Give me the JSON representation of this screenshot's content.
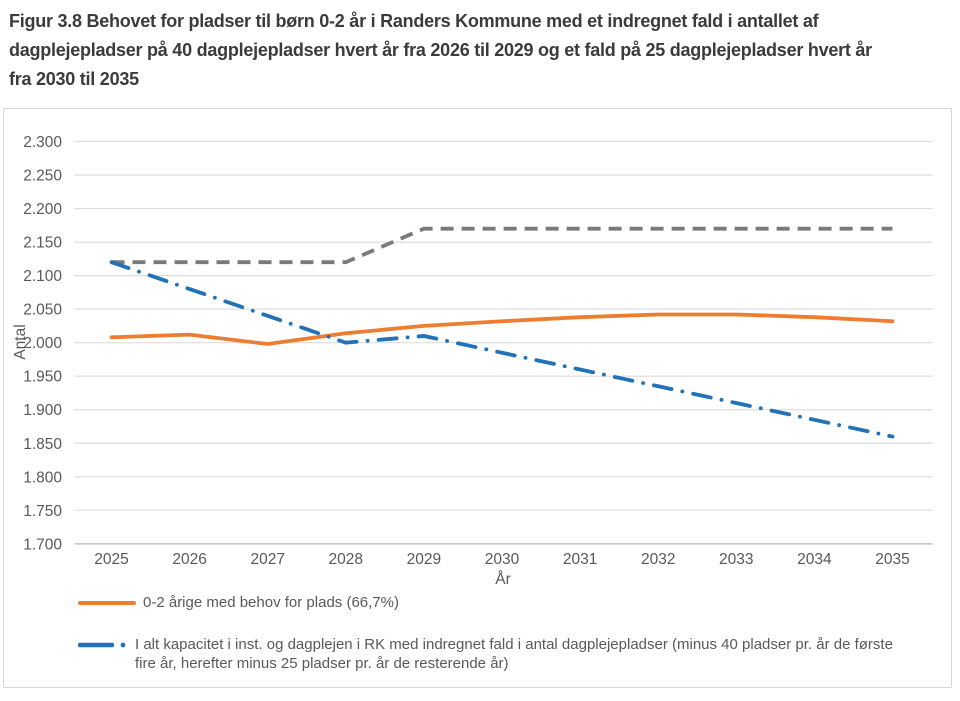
{
  "title": {
    "lines": [
      "Figur 3.8 Behovet for pladser til børn 0-2 år i Randers Kommune med et indregnet fald i antallet af",
      "dagplejepladser på 40 dagplejepladser hvert år fra 2026 til 2029 og et fald på 25 dagplejepladser hvert år",
      "fra 2030 til 2035"
    ]
  },
  "chart_data": {
    "type": "line",
    "xlabel": "År",
    "ylabel": "Antal",
    "categories": [
      "2025",
      "2026",
      "2027",
      "2028",
      "2029",
      "2030",
      "2031",
      "2032",
      "2033",
      "2034",
      "2035"
    ],
    "ylim": [
      1700,
      2300
    ],
    "ytick_step": 50,
    "ytick_labels": [
      "2.300",
      "2.250",
      "2.200",
      "2.150",
      "2.100",
      "2.050",
      "2.000",
      "1.950",
      "1.900",
      "1.850",
      "1.800",
      "1.750",
      "1.700"
    ],
    "grid": true,
    "legend_position": "bottom-left",
    "series": [
      {
        "name": "0-2 årige med behov for plads (66,7%)",
        "color": "#ED7D31",
        "line_style": "solid",
        "show_in_legend": true,
        "values": [
          2008,
          2012,
          1998,
          2014,
          2025,
          2032,
          2038,
          2042,
          2042,
          2038,
          2032
        ]
      },
      {
        "name": "I alt kapacitet i inst. og dagplejen i RK med indregnet fald i antal dagplejepladser (minus 40 pladser pr. år de første fire år, herefter minus 25 pladser pr. år de resterende år)",
        "color": "#2172B6",
        "line_style": "dashdot",
        "show_in_legend": true,
        "values": [
          2120,
          2080,
          2040,
          2000,
          2010,
          1985,
          1960,
          1935,
          1910,
          1885,
          1860
        ]
      },
      {
        "name": "",
        "color": "#7A7A7A",
        "line_style": "dashed",
        "show_in_legend": false,
        "values": [
          2120,
          2120,
          2120,
          2120,
          2170,
          2170,
          2170,
          2170,
          2170,
          2170,
          2170
        ]
      }
    ]
  }
}
